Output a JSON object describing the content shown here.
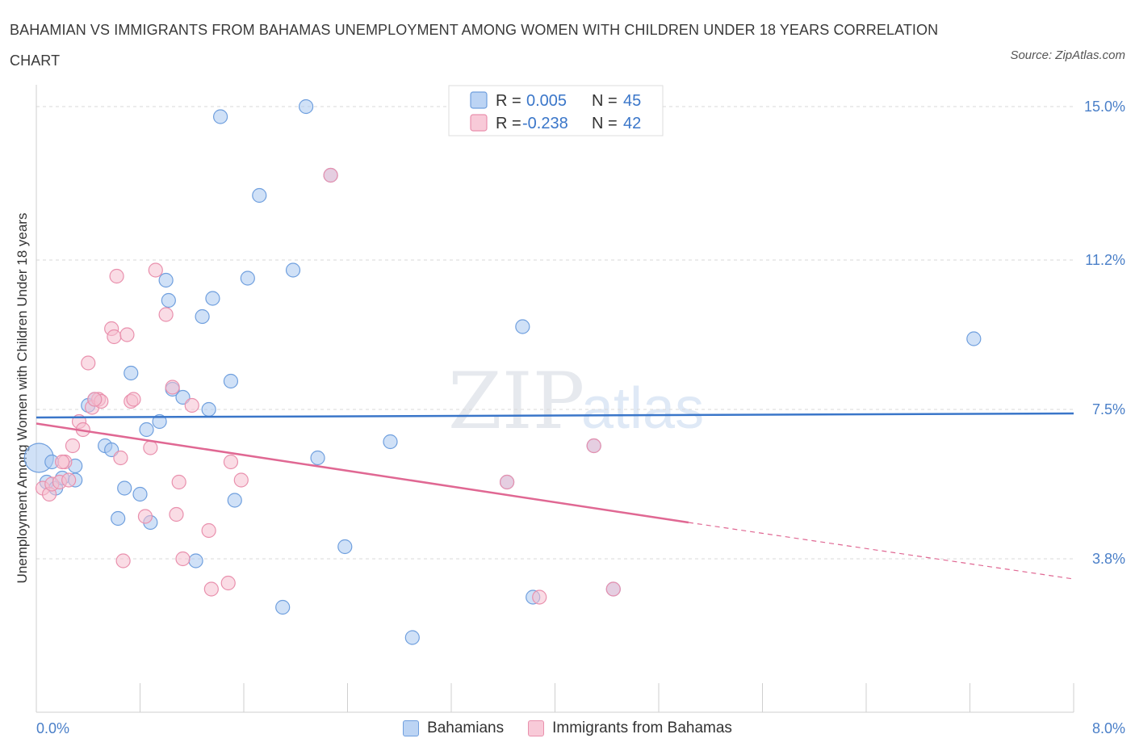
{
  "title": "BAHAMIAN VS IMMIGRANTS FROM BAHAMAS UNEMPLOYMENT AMONG WOMEN WITH CHILDREN UNDER 18 YEARS CORRELATION CHART",
  "source": "Source: ZipAtlas.com",
  "watermark": {
    "zip": "ZIP",
    "atlas": "atlas"
  },
  "legend_top": {
    "rows": [
      {
        "r_label": "R =",
        "r_value": "0.005",
        "n_label": "N =",
        "n_value": "45"
      },
      {
        "r_label": "R =",
        "r_value": "-0.238",
        "n_label": "N =",
        "n_value": "42"
      }
    ]
  },
  "legend_bottom": {
    "items": [
      "Bahamians",
      "Immigrants from Bahamas"
    ]
  },
  "colors": {
    "blue_fill": "#a9c8f0",
    "blue_stroke": "#6f9fde",
    "blue_line": "#3a76c9",
    "pink_fill": "#f6bfd0",
    "pink_stroke": "#e990ad",
    "pink_line": "#e06893",
    "tick_text": "#4a7fc8"
  },
  "chart_data": {
    "type": "scatter",
    "title": "BAHAMIAN VS IMMIGRANTS FROM BAHAMAS UNEMPLOYMENT AMONG WOMEN WITH CHILDREN UNDER 18 YEARS CORRELATION CHART",
    "xlabel": "",
    "ylabel": "Unemployment Among Women with Children Under 18 years",
    "xlim": [
      0,
      8
    ],
    "ylim": [
      0,
      15.3
    ],
    "x_tick_labels": [
      "0.0%",
      "8.0%"
    ],
    "y_ticks": [
      {
        "value": 15.0,
        "label": "15.0%"
      },
      {
        "value": 11.2,
        "label": "11.2%"
      },
      {
        "value": 7.5,
        "label": "7.5%"
      },
      {
        "value": 3.8,
        "label": "3.8%"
      }
    ],
    "grid": "horizontal dashed",
    "legend": "top-center",
    "series": [
      {
        "name": "Bahamians",
        "r": 0.005,
        "n": 45,
        "trend": {
          "x": [
            0,
            8
          ],
          "y": [
            7.3,
            7.4
          ]
        },
        "points": [
          {
            "x": 0.02,
            "y": 6.3,
            "big": true
          },
          {
            "x": 0.08,
            "y": 5.7
          },
          {
            "x": 0.15,
            "y": 5.55
          },
          {
            "x": 0.2,
            "y": 5.8
          },
          {
            "x": 0.3,
            "y": 6.1
          },
          {
            "x": 0.3,
            "y": 5.75
          },
          {
            "x": 0.4,
            "y": 7.6
          },
          {
            "x": 0.45,
            "y": 7.75
          },
          {
            "x": 0.53,
            "y": 6.6
          },
          {
            "x": 0.58,
            "y": 6.5
          },
          {
            "x": 0.63,
            "y": 4.8
          },
          {
            "x": 0.68,
            "y": 5.55
          },
          {
            "x": 0.73,
            "y": 8.4
          },
          {
            "x": 0.8,
            "y": 5.4
          },
          {
            "x": 0.85,
            "y": 7.0
          },
          {
            "x": 0.88,
            "y": 4.7
          },
          {
            "x": 0.95,
            "y": 7.2
          },
          {
            "x": 1.0,
            "y": 10.7
          },
          {
            "x": 1.02,
            "y": 10.2
          },
          {
            "x": 1.05,
            "y": 8.0
          },
          {
            "x": 1.13,
            "y": 7.8
          },
          {
            "x": 1.23,
            "y": 3.75
          },
          {
            "x": 1.28,
            "y": 9.8
          },
          {
            "x": 1.33,
            "y": 7.5
          },
          {
            "x": 1.36,
            "y": 10.25
          },
          {
            "x": 1.5,
            "y": 8.2
          },
          {
            "x": 1.53,
            "y": 5.25
          },
          {
            "x": 1.63,
            "y": 10.75
          },
          {
            "x": 1.72,
            "y": 12.8
          },
          {
            "x": 1.9,
            "y": 2.6
          },
          {
            "x": 1.98,
            "y": 10.95
          },
          {
            "x": 2.08,
            "y": 15.0
          },
          {
            "x": 2.17,
            "y": 6.3
          },
          {
            "x": 2.27,
            "y": 13.3
          },
          {
            "x": 2.38,
            "y": 4.1
          },
          {
            "x": 2.73,
            "y": 6.7
          },
          {
            "x": 2.9,
            "y": 1.85
          },
          {
            "x": 3.63,
            "y": 5.7
          },
          {
            "x": 3.75,
            "y": 9.55
          },
          {
            "x": 3.83,
            "y": 2.85
          },
          {
            "x": 4.3,
            "y": 6.6
          },
          {
            "x": 4.45,
            "y": 3.05
          },
          {
            "x": 1.42,
            "y": 14.75
          },
          {
            "x": 7.23,
            "y": 9.25
          },
          {
            "x": 0.12,
            "y": 6.2
          }
        ]
      },
      {
        "name": "Immigrants from Bahamas",
        "r": -0.238,
        "n": 42,
        "trend": {
          "x": [
            0,
            5.03
          ],
          "y": [
            7.15,
            4.7
          ],
          "dashed_to": {
            "x": 8,
            "y": 3.3
          }
        },
        "points": [
          {
            "x": 0.05,
            "y": 5.55
          },
          {
            "x": 0.1,
            "y": 5.4
          },
          {
            "x": 0.12,
            "y": 5.65
          },
          {
            "x": 0.18,
            "y": 5.7
          },
          {
            "x": 0.22,
            "y": 6.2
          },
          {
            "x": 0.25,
            "y": 5.75
          },
          {
            "x": 0.28,
            "y": 6.6
          },
          {
            "x": 0.33,
            "y": 7.2
          },
          {
            "x": 0.36,
            "y": 7.0
          },
          {
            "x": 0.4,
            "y": 8.65
          },
          {
            "x": 0.43,
            "y": 7.55
          },
          {
            "x": 0.48,
            "y": 7.75
          },
          {
            "x": 0.5,
            "y": 7.7
          },
          {
            "x": 0.58,
            "y": 9.5
          },
          {
            "x": 0.6,
            "y": 9.3
          },
          {
            "x": 0.62,
            "y": 10.8
          },
          {
            "x": 0.65,
            "y": 6.3
          },
          {
            "x": 0.67,
            "y": 3.75
          },
          {
            "x": 0.7,
            "y": 9.35
          },
          {
            "x": 0.73,
            "y": 7.7
          },
          {
            "x": 0.75,
            "y": 7.75
          },
          {
            "x": 0.84,
            "y": 4.85
          },
          {
            "x": 0.88,
            "y": 6.55
          },
          {
            "x": 0.92,
            "y": 10.95
          },
          {
            "x": 1.0,
            "y": 9.85
          },
          {
            "x": 1.05,
            "y": 8.05
          },
          {
            "x": 1.08,
            "y": 4.9
          },
          {
            "x": 1.1,
            "y": 5.7
          },
          {
            "x": 1.13,
            "y": 3.8
          },
          {
            "x": 1.2,
            "y": 7.6
          },
          {
            "x": 1.33,
            "y": 4.5
          },
          {
            "x": 1.35,
            "y": 3.05
          },
          {
            "x": 1.48,
            "y": 3.2
          },
          {
            "x": 1.5,
            "y": 6.2
          },
          {
            "x": 1.58,
            "y": 5.75
          },
          {
            "x": 2.27,
            "y": 13.3
          },
          {
            "x": 3.63,
            "y": 5.7
          },
          {
            "x": 3.88,
            "y": 2.85
          },
          {
            "x": 4.3,
            "y": 6.6
          },
          {
            "x": 4.45,
            "y": 3.05
          },
          {
            "x": 0.2,
            "y": 6.2
          },
          {
            "x": 0.45,
            "y": 7.75
          }
        ]
      }
    ]
  }
}
